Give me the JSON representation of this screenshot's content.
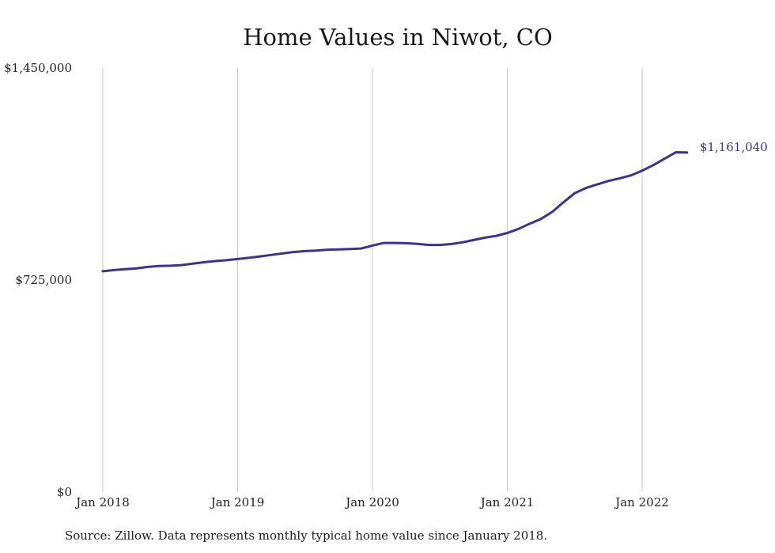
{
  "chart_data": {
    "type": "line",
    "title": "Home Values in Niwot, CO",
    "xlabel": "",
    "ylabel": "",
    "x_ticks": [
      "Jan 2018",
      "Jan 2019",
      "Jan 2020",
      "Jan 2021",
      "Jan 2022"
    ],
    "y_ticks": [
      {
        "value": 0,
        "label": "$0"
      },
      {
        "value": 725000,
        "label": "$725,000"
      },
      {
        "value": 1450000,
        "label": "$1,450,000"
      }
    ],
    "ylim": [
      0,
      1450000
    ],
    "xlim": [
      "2018-01",
      "2022-05"
    ],
    "grid": {
      "vertical": true,
      "horizontal": false
    },
    "series": [
      {
        "color": "#3a3395",
        "x": [
          "2018-01",
          "2018-02",
          "2018-03",
          "2018-04",
          "2018-05",
          "2018-06",
          "2018-07",
          "2018-08",
          "2018-09",
          "2018-10",
          "2018-11",
          "2018-12",
          "2019-01",
          "2019-02",
          "2019-03",
          "2019-04",
          "2019-05",
          "2019-06",
          "2019-07",
          "2019-08",
          "2019-09",
          "2019-10",
          "2019-11",
          "2019-12",
          "2020-01",
          "2020-02",
          "2020-03",
          "2020-04",
          "2020-05",
          "2020-06",
          "2020-07",
          "2020-08",
          "2020-09",
          "2020-10",
          "2020-11",
          "2020-12",
          "2021-01",
          "2021-02",
          "2021-03",
          "2021-04",
          "2021-05",
          "2021-06",
          "2021-07",
          "2021-08",
          "2021-09",
          "2021-10",
          "2021-11",
          "2021-12",
          "2022-01",
          "2022-02",
          "2022-03",
          "2022-04",
          "2022-05"
        ],
        "values": [
          755000,
          759000,
          762000,
          765000,
          770000,
          773000,
          774000,
          776000,
          781000,
          786000,
          790000,
          793000,
          797000,
          801000,
          806000,
          811000,
          816000,
          821000,
          824000,
          826000,
          829000,
          830000,
          831000,
          833000,
          843000,
          852000,
          852000,
          851000,
          849000,
          845000,
          845000,
          848000,
          854000,
          862000,
          870000,
          876000,
          886000,
          900000,
          918000,
          934000,
          958000,
          991000,
          1022000,
          1040000,
          1052000,
          1064000,
          1073000,
          1083000,
          1099000,
          1118000,
          1140000,
          1162000,
          1161040
        ],
        "end_label": "$1,161,040"
      }
    ],
    "source": "Source: Zillow. Data represents monthly typical home value since January 2018."
  }
}
